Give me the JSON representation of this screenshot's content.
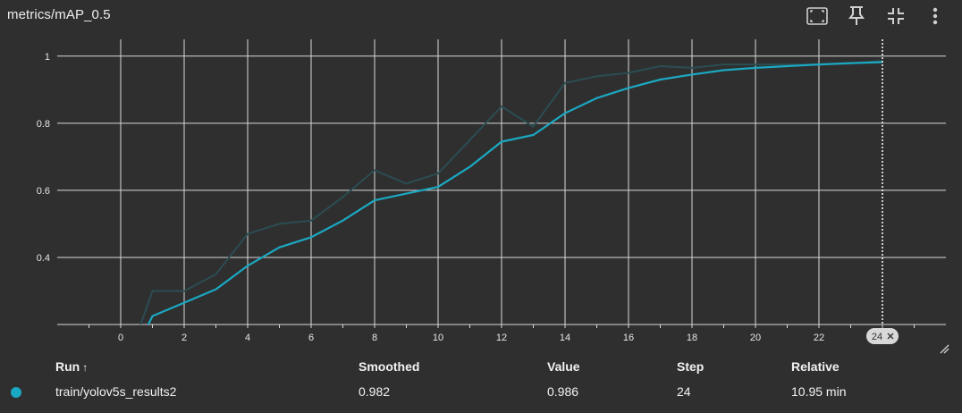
{
  "card": {
    "title": "metrics/mAP_0.5",
    "toolbar_icons": [
      "fit-domain-icon",
      "pin-icon",
      "fullscreen-exit-icon",
      "more-vertical-icon"
    ]
  },
  "colors": {
    "background": "#2f2f2f",
    "smoothed_line": "#1ba8c2",
    "raw_line": "#2b4d52",
    "grid": "#d8d8d8"
  },
  "chart_data": {
    "type": "line",
    "title": "metrics/mAP_0.5",
    "xlabel": "",
    "ylabel": "",
    "xlim": [
      -2,
      26
    ],
    "ylim": [
      0.2,
      1.05
    ],
    "x_ticks": [
      0,
      2,
      4,
      6,
      8,
      10,
      12,
      14,
      16,
      18,
      20,
      22
    ],
    "y_ticks": [
      0.4,
      0.6,
      0.8,
      1
    ],
    "y_tick_labels": [
      "0.4",
      "0.6",
      "0.8",
      "1"
    ],
    "grid": true,
    "cursor_step_label": "24",
    "series": [
      {
        "name": "train/yolov5s_results2",
        "kind": "raw",
        "x": [
          0,
          1,
          2,
          3,
          4,
          5,
          6,
          7,
          8,
          9,
          10,
          11,
          12,
          13,
          14,
          15,
          16,
          17,
          18,
          19,
          20,
          21,
          22,
          23,
          24
        ],
        "values": [
          0.03,
          0.3,
          0.3,
          0.35,
          0.47,
          0.5,
          0.51,
          0.58,
          0.66,
          0.62,
          0.65,
          0.75,
          0.85,
          0.79,
          0.92,
          0.94,
          0.95,
          0.97,
          0.965,
          0.975,
          0.975,
          0.975,
          0.975,
          0.978,
          0.986
        ]
      },
      {
        "name": "train/yolov5s_results2",
        "kind": "smoothed",
        "x": [
          0,
          1,
          2,
          3,
          4,
          5,
          6,
          7,
          8,
          9,
          10,
          11,
          12,
          13,
          14,
          15,
          16,
          17,
          18,
          19,
          20,
          21,
          22,
          23,
          24
        ],
        "values": [
          0.03,
          0.225,
          0.265,
          0.305,
          0.375,
          0.43,
          0.46,
          0.51,
          0.57,
          0.59,
          0.61,
          0.67,
          0.745,
          0.765,
          0.83,
          0.875,
          0.905,
          0.93,
          0.945,
          0.958,
          0.965,
          0.97,
          0.975,
          0.979,
          0.982
        ]
      }
    ]
  },
  "table": {
    "headers": {
      "run": "Run",
      "run_sort": "↑",
      "smoothed": "Smoothed",
      "value": "Value",
      "step": "Step",
      "relative": "Relative"
    },
    "rows": [
      {
        "run": "train/yolov5s_results2",
        "smoothed": "0.982",
        "value": "0.986",
        "step": "24",
        "relative": "10.95 min",
        "color": "#1ba8c2"
      }
    ]
  }
}
